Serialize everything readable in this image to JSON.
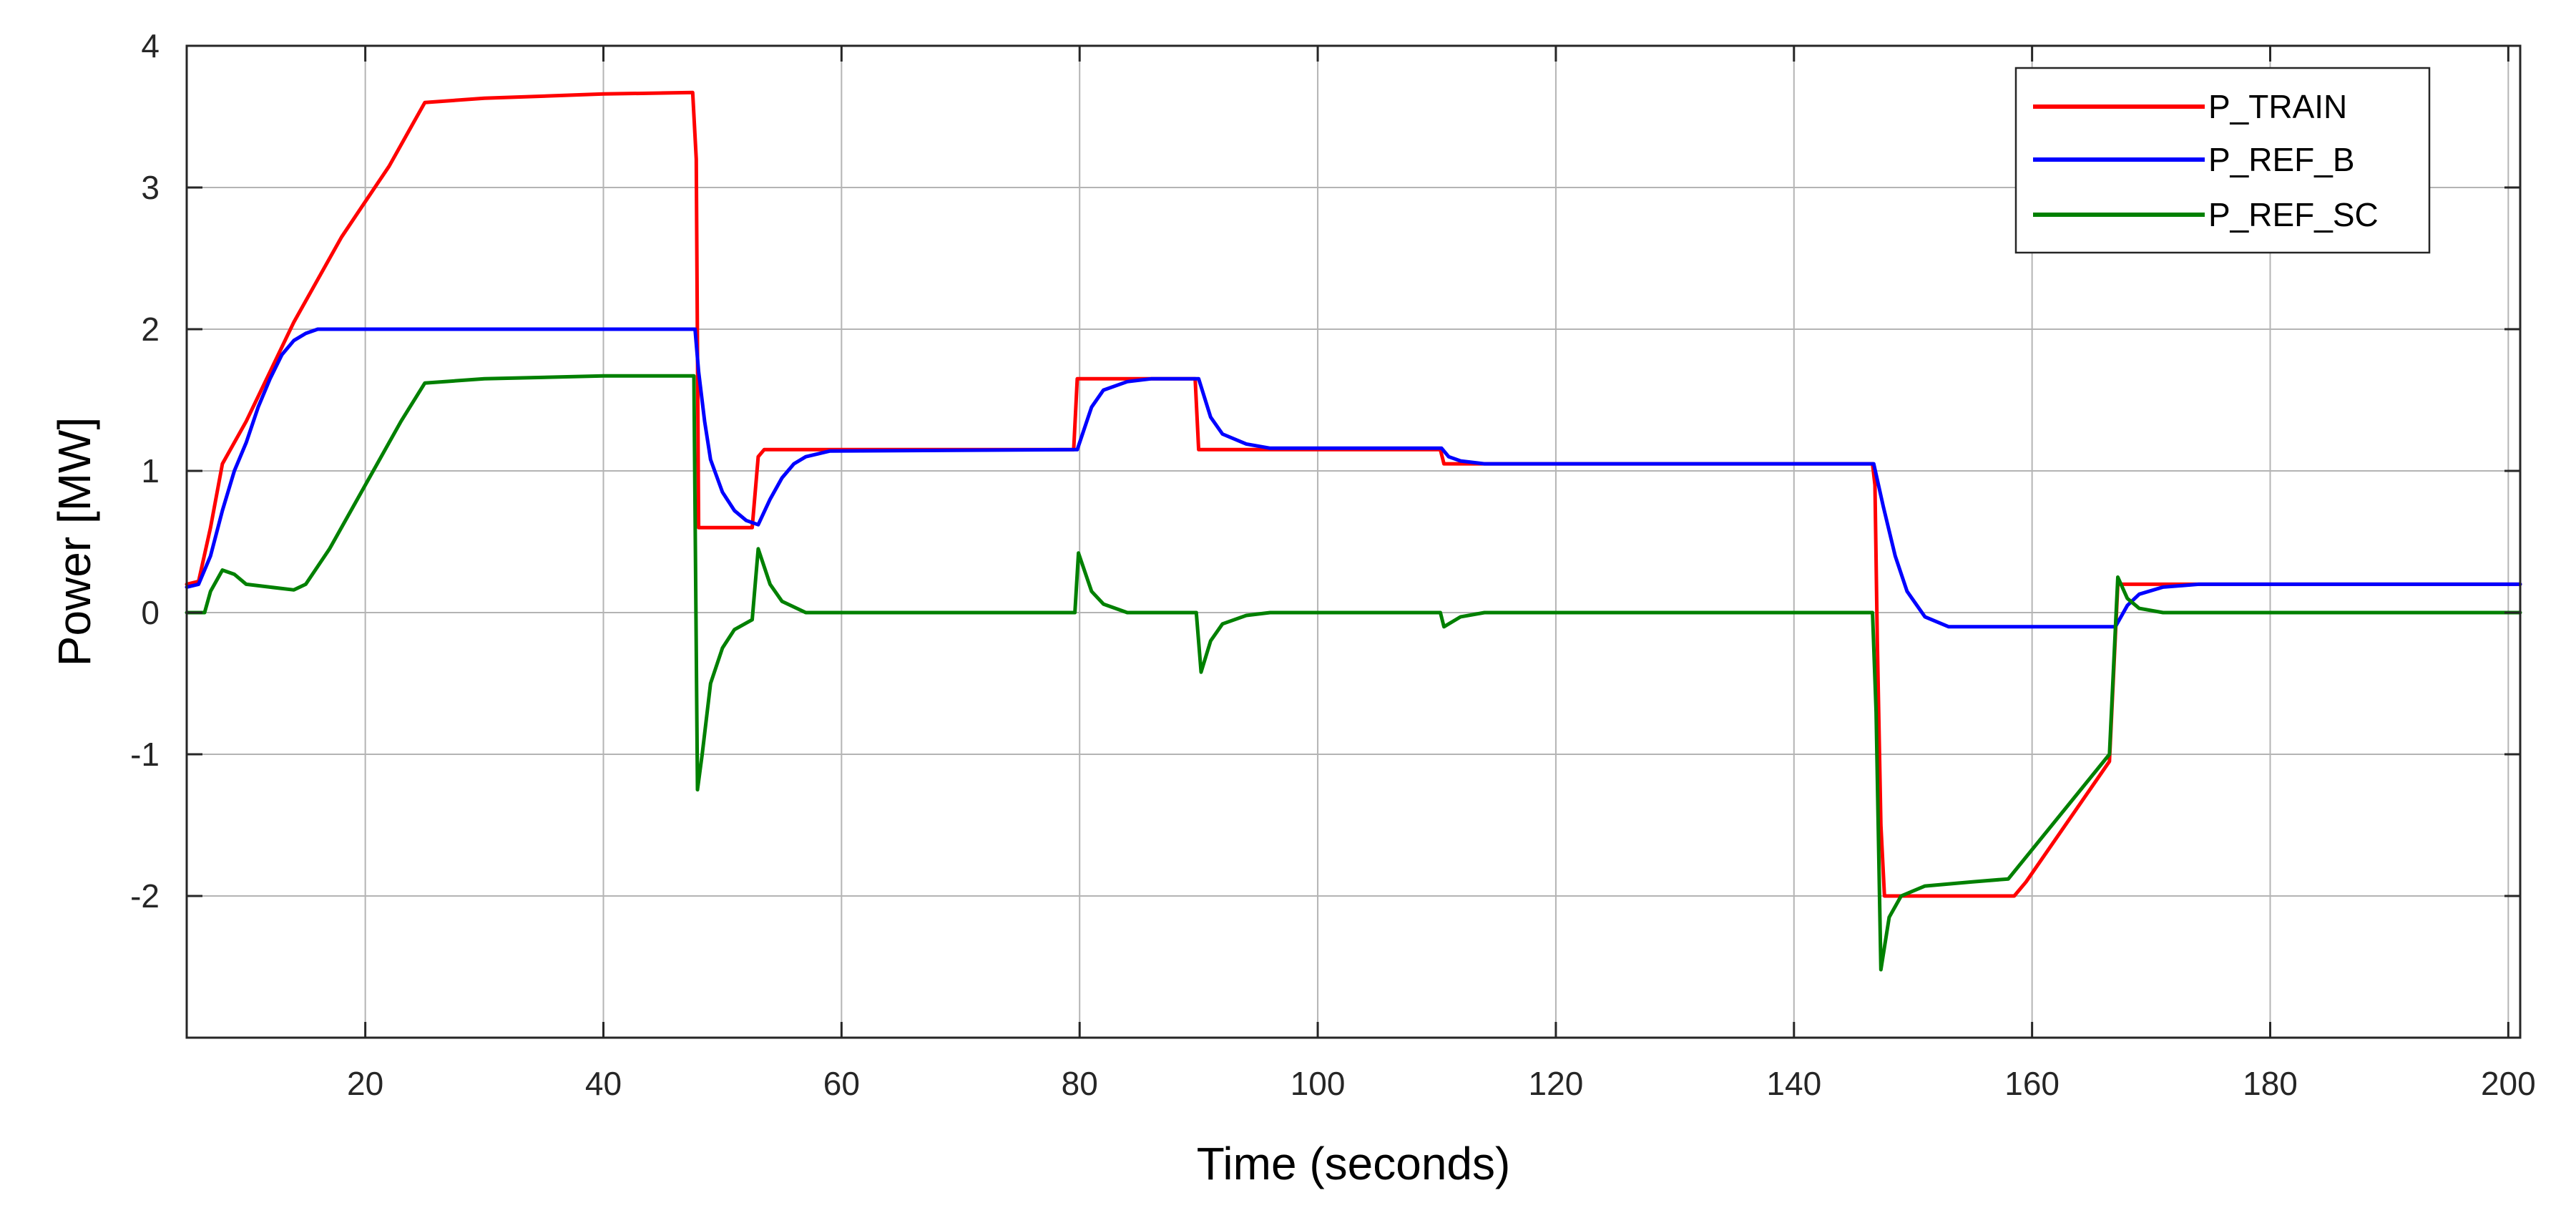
{
  "chart_data": {
    "type": "line",
    "xlabel": "Time (seconds)",
    "ylabel": "Power [MW]",
    "xlim": [
      5,
      201
    ],
    "ylim": [
      -3,
      4
    ],
    "xticks": [
      20,
      40,
      60,
      80,
      100,
      120,
      140,
      160,
      180,
      200
    ],
    "yticks": [
      -2,
      -1,
      0,
      1,
      2,
      3,
      4
    ],
    "xtick_labels": [
      "20",
      "40",
      "60",
      "80",
      "100",
      "120",
      "140",
      "160",
      "180",
      "200"
    ],
    "ytick_labels": [
      "-2",
      "-1",
      "0",
      "1",
      "2",
      "3",
      "4"
    ],
    "grid": true,
    "legend_position": "top-right",
    "series": [
      {
        "name": "P_TRAIN",
        "color": "#ff0000",
        "points": [
          [
            5,
            0.2
          ],
          [
            6,
            0.22
          ],
          [
            7,
            0.6
          ],
          [
            8,
            1.05
          ],
          [
            10,
            1.35
          ],
          [
            12,
            1.7
          ],
          [
            14,
            2.05
          ],
          [
            16,
            2.35
          ],
          [
            18,
            2.65
          ],
          [
            20,
            2.9
          ],
          [
            22,
            3.15
          ],
          [
            24,
            3.45
          ],
          [
            25,
            3.6
          ],
          [
            30,
            3.63
          ],
          [
            40,
            3.66
          ],
          [
            47.5,
            3.67
          ],
          [
            47.8,
            3.2
          ],
          [
            48,
            0.6
          ],
          [
            52.5,
            0.6
          ],
          [
            53,
            1.1
          ],
          [
            53.5,
            1.15
          ],
          [
            79.5,
            1.15
          ],
          [
            79.8,
            1.65
          ],
          [
            89.7,
            1.65
          ],
          [
            90,
            1.15
          ],
          [
            110.3,
            1.15
          ],
          [
            110.6,
            1.05
          ],
          [
            146.6,
            1.05
          ],
          [
            146.8,
            0.9
          ],
          [
            147,
            -0.2
          ],
          [
            147.3,
            -1.5
          ],
          [
            147.6,
            -2.0
          ],
          [
            158.5,
            -2.0
          ],
          [
            159.5,
            -1.9
          ],
          [
            166.5,
            -1.05
          ],
          [
            167.2,
            0.2
          ],
          [
            167.5,
            0.2
          ],
          [
            201,
            0.2
          ]
        ]
      },
      {
        "name": "P_REF_B",
        "color": "#0000ff",
        "points": [
          [
            5,
            0.18
          ],
          [
            6,
            0.2
          ],
          [
            7,
            0.4
          ],
          [
            8,
            0.72
          ],
          [
            9,
            1.0
          ],
          [
            10,
            1.2
          ],
          [
            11,
            1.45
          ],
          [
            12,
            1.65
          ],
          [
            13,
            1.82
          ],
          [
            14,
            1.92
          ],
          [
            15,
            1.97
          ],
          [
            16,
            2.0
          ],
          [
            47.7,
            2.0
          ],
          [
            48,
            1.7
          ],
          [
            48.5,
            1.35
          ],
          [
            49,
            1.08
          ],
          [
            50,
            0.85
          ],
          [
            51,
            0.72
          ],
          [
            52,
            0.65
          ],
          [
            53,
            0.62
          ],
          [
            54,
            0.8
          ],
          [
            55,
            0.95
          ],
          [
            56,
            1.05
          ],
          [
            57,
            1.1
          ],
          [
            59,
            1.14
          ],
          [
            79.8,
            1.15
          ],
          [
            81,
            1.45
          ],
          [
            82,
            1.57
          ],
          [
            84,
            1.63
          ],
          [
            86,
            1.65
          ],
          [
            90,
            1.65
          ],
          [
            91,
            1.38
          ],
          [
            92,
            1.26
          ],
          [
            94,
            1.19
          ],
          [
            96,
            1.16
          ],
          [
            110.4,
            1.16
          ],
          [
            111,
            1.1
          ],
          [
            112,
            1.07
          ],
          [
            114,
            1.05
          ],
          [
            146.7,
            1.05
          ],
          [
            147.5,
            0.75
          ],
          [
            148.5,
            0.4
          ],
          [
            149.5,
            0.15
          ],
          [
            151,
            -0.03
          ],
          [
            153,
            -0.1
          ],
          [
            167,
            -0.1
          ],
          [
            168,
            0.05
          ],
          [
            169,
            0.13
          ],
          [
            171,
            0.18
          ],
          [
            174,
            0.2
          ],
          [
            201,
            0.2
          ]
        ]
      },
      {
        "name": "P_REF_SC",
        "color": "#008000",
        "points": [
          [
            5,
            0.0
          ],
          [
            6.5,
            0.0
          ],
          [
            7,
            0.15
          ],
          [
            8,
            0.3
          ],
          [
            9,
            0.27
          ],
          [
            10,
            0.2
          ],
          [
            12,
            0.18
          ],
          [
            14,
            0.16
          ],
          [
            15,
            0.2
          ],
          [
            17,
            0.45
          ],
          [
            19,
            0.75
          ],
          [
            21,
            1.05
          ],
          [
            23,
            1.35
          ],
          [
            25,
            1.62
          ],
          [
            30,
            1.65
          ],
          [
            40,
            1.67
          ],
          [
            47.6,
            1.67
          ],
          [
            47.9,
            -1.25
          ],
          [
            48.3,
            -1.0
          ],
          [
            49,
            -0.5
          ],
          [
            50,
            -0.25
          ],
          [
            51,
            -0.12
          ],
          [
            52.5,
            -0.05
          ],
          [
            53,
            0.45
          ],
          [
            54,
            0.2
          ],
          [
            55,
            0.08
          ],
          [
            57,
            0.0
          ],
          [
            79.6,
            0.0
          ],
          [
            79.9,
            0.42
          ],
          [
            81,
            0.15
          ],
          [
            82,
            0.06
          ],
          [
            84,
            0.0
          ],
          [
            89.8,
            0.0
          ],
          [
            90.2,
            -0.42
          ],
          [
            91,
            -0.2
          ],
          [
            92,
            -0.08
          ],
          [
            94,
            -0.02
          ],
          [
            96,
            0.0
          ],
          [
            110.3,
            0.0
          ],
          [
            110.6,
            -0.1
          ],
          [
            112,
            -0.03
          ],
          [
            114,
            0.0
          ],
          [
            146.6,
            0.0
          ],
          [
            146.9,
            -0.7
          ],
          [
            147.3,
            -2.52
          ],
          [
            148,
            -2.15
          ],
          [
            149,
            -2.0
          ],
          [
            151,
            -1.93
          ],
          [
            155,
            -1.9
          ],
          [
            158,
            -1.88
          ],
          [
            166.5,
            -1.0
          ],
          [
            167.2,
            0.25
          ],
          [
            168,
            0.1
          ],
          [
            169,
            0.03
          ],
          [
            171,
            0.0
          ],
          [
            201,
            0.0
          ]
        ]
      }
    ]
  }
}
